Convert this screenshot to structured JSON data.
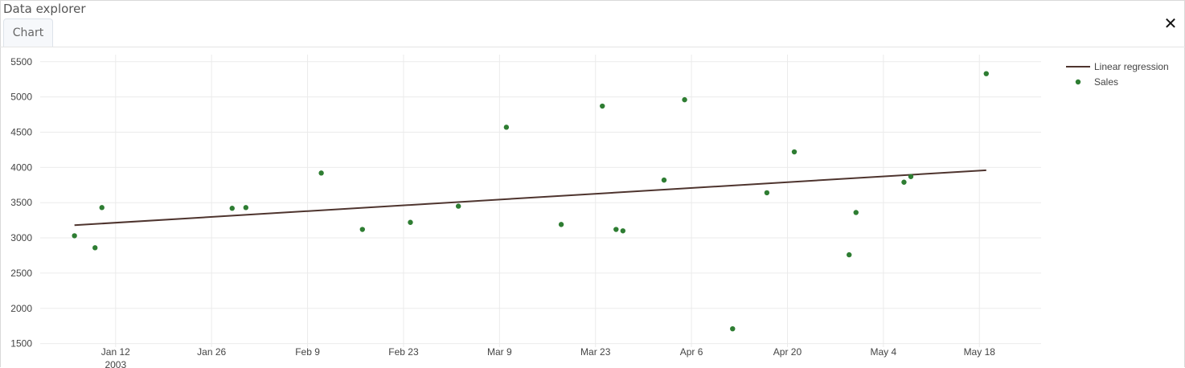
{
  "window": {
    "title": "Data explorer",
    "tab_label": "Chart",
    "close_glyph": "✕"
  },
  "colors": {
    "regression": "#4e342e",
    "points": "#2e7d32",
    "grid": "#ebebeb"
  },
  "chart_data": {
    "type": "scatter",
    "x_axis": {
      "type": "date",
      "range": [
        "2003-01-01",
        "2003-05-27"
      ],
      "tick_labels": [
        "Jan 12",
        "Jan 26",
        "Feb 9",
        "Feb 23",
        "Mar 9",
        "Mar 23",
        "Apr 6",
        "Apr 20",
        "May 4",
        "May 18"
      ],
      "tick_dates": [
        "2003-01-12",
        "2003-01-26",
        "2003-02-09",
        "2003-02-23",
        "2003-03-09",
        "2003-03-23",
        "2003-04-06",
        "2003-04-20",
        "2003-05-04",
        "2003-05-18"
      ],
      "year_label": "2003"
    },
    "y_axis": {
      "range": [
        1450,
        5600
      ],
      "ticks": [
        1500,
        2000,
        2500,
        3000,
        3500,
        4000,
        4500,
        5000,
        5500
      ]
    },
    "grid": true,
    "legend_position": "top-right",
    "series": [
      {
        "name": "Linear regression",
        "kind": "line",
        "points": [
          {
            "x": "2003-01-06",
            "y": 3180
          },
          {
            "x": "2003-05-19",
            "y": 3960
          }
        ]
      },
      {
        "name": "Sales",
        "kind": "markers",
        "points": [
          {
            "x": "2003-01-06",
            "y": 3030
          },
          {
            "x": "2003-01-09",
            "y": 2860
          },
          {
            "x": "2003-01-10",
            "y": 3430
          },
          {
            "x": "2003-01-29",
            "y": 3420
          },
          {
            "x": "2003-01-31",
            "y": 3430
          },
          {
            "x": "2003-02-11",
            "y": 3920
          },
          {
            "x": "2003-02-17",
            "y": 3120
          },
          {
            "x": "2003-02-24",
            "y": 3220
          },
          {
            "x": "2003-03-03",
            "y": 3450
          },
          {
            "x": "2003-03-10",
            "y": 4570
          },
          {
            "x": "2003-03-18",
            "y": 3190
          },
          {
            "x": "2003-03-24",
            "y": 4870
          },
          {
            "x": "2003-03-26",
            "y": 3120
          },
          {
            "x": "2003-03-27",
            "y": 3100
          },
          {
            "x": "2003-04-02",
            "y": 3820
          },
          {
            "x": "2003-04-05",
            "y": 4960
          },
          {
            "x": "2003-04-12",
            "y": 1710
          },
          {
            "x": "2003-04-17",
            "y": 3640
          },
          {
            "x": "2003-04-21",
            "y": 4220
          },
          {
            "x": "2003-04-29",
            "y": 2760
          },
          {
            "x": "2003-04-30",
            "y": 3360
          },
          {
            "x": "2003-05-07",
            "y": 3790
          },
          {
            "x": "2003-05-08",
            "y": 3870
          },
          {
            "x": "2003-05-19",
            "y": 5330
          }
        ]
      }
    ]
  }
}
